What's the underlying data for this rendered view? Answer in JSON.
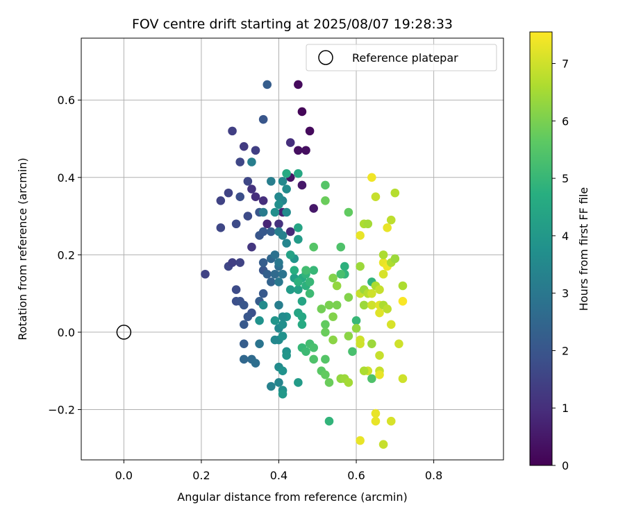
{
  "chart_data": {
    "type": "scatter",
    "title": "FOV centre drift starting at 2025/08/07 19:28:33",
    "xlabel": "Angular distance from reference (arcmin)",
    "ylabel": "Rotation from reference (arcmin)",
    "xlim": [
      -0.11,
      0.98
    ],
    "ylim": [
      -0.33,
      0.76
    ],
    "xticks": [
      0.0,
      0.2,
      0.4,
      0.6,
      0.8
    ],
    "xtick_labels": [
      "0.0",
      "0.2",
      "0.4",
      "0.6",
      "0.8"
    ],
    "yticks": [
      -0.2,
      0.0,
      0.2,
      0.4,
      0.6
    ],
    "ytick_labels": [
      "−0.2",
      "0.0",
      "0.2",
      "0.4",
      "0.6"
    ],
    "grid": true,
    "legend": {
      "placement": "top-right",
      "entries": [
        "Reference platepar"
      ]
    },
    "reference_point": {
      "x": 0.0,
      "y": 0.0,
      "marker": "open-circle"
    },
    "colorbar": {
      "label": "Hours from first FF file",
      "range": [
        0,
        7.55
      ],
      "ticks": [
        0,
        1,
        2,
        3,
        4,
        5,
        6,
        7
      ],
      "tick_labels": [
        "0",
        "1",
        "2",
        "3",
        "4",
        "5",
        "6",
        "7"
      ],
      "colormap": "viridis"
    },
    "points": [
      [
        0.45,
        0.64,
        0.2
      ],
      [
        0.46,
        0.57,
        0.1
      ],
      [
        0.48,
        0.52,
        0.2
      ],
      [
        0.47,
        0.47,
        0.3
      ],
      [
        0.45,
        0.47,
        0.3
      ],
      [
        0.43,
        0.4,
        0.4
      ],
      [
        0.49,
        0.32,
        0.5
      ],
      [
        0.46,
        0.38,
        0.5
      ],
      [
        0.41,
        0.31,
        0.7
      ],
      [
        0.37,
        0.28,
        0.8
      ],
      [
        0.43,
        0.26,
        0.9
      ],
      [
        0.34,
        0.35,
        1.0
      ],
      [
        0.36,
        0.34,
        1.0
      ],
      [
        0.33,
        0.37,
        1.1
      ],
      [
        0.43,
        0.49,
        1.0
      ],
      [
        0.4,
        0.28,
        1.1
      ],
      [
        0.33,
        0.22,
        1.2
      ],
      [
        0.31,
        0.48,
        1.3
      ],
      [
        0.34,
        0.47,
        1.4
      ],
      [
        0.28,
        0.52,
        1.4
      ],
      [
        0.25,
        0.34,
        1.5
      ],
      [
        0.27,
        0.36,
        1.5
      ],
      [
        0.3,
        0.44,
        1.6
      ],
      [
        0.32,
        0.39,
        1.6
      ],
      [
        0.21,
        0.15,
        1.5
      ],
      [
        0.27,
        0.17,
        1.6
      ],
      [
        0.28,
        0.18,
        1.4
      ],
      [
        0.3,
        0.18,
        1.5
      ],
      [
        0.25,
        0.27,
        1.6
      ],
      [
        0.29,
        0.28,
        1.7
      ],
      [
        0.3,
        0.35,
        1.8
      ],
      [
        0.32,
        0.3,
        1.7
      ],
      [
        0.36,
        0.55,
        2.0
      ],
      [
        0.37,
        0.64,
        2.2
      ],
      [
        0.35,
        0.31,
        2.0
      ],
      [
        0.35,
        0.25,
        2.0
      ],
      [
        0.36,
        0.26,
        2.1
      ],
      [
        0.38,
        0.26,
        2.2
      ],
      [
        0.29,
        0.11,
        1.7
      ],
      [
        0.29,
        0.08,
        1.8
      ],
      [
        0.3,
        0.08,
        1.9
      ],
      [
        0.31,
        0.07,
        2.0
      ],
      [
        0.33,
        0.05,
        1.9
      ],
      [
        0.32,
        0.04,
        2.0
      ],
      [
        0.31,
        0.02,
        2.1
      ],
      [
        0.35,
        0.08,
        2.2
      ],
      [
        0.36,
        0.1,
        2.1
      ],
      [
        0.36,
        0.16,
        2.0
      ],
      [
        0.36,
        0.18,
        2.2
      ],
      [
        0.37,
        0.15,
        2.3
      ],
      [
        0.38,
        0.13,
        2.4
      ],
      [
        0.38,
        0.19,
        2.5
      ],
      [
        0.39,
        0.15,
        2.6
      ],
      [
        0.4,
        0.17,
        2.7
      ],
      [
        0.41,
        0.15,
        2.9
      ],
      [
        0.4,
        0.13,
        3.0
      ],
      [
        0.39,
        0.2,
        2.8
      ],
      [
        0.4,
        0.18,
        3.0
      ],
      [
        0.4,
        0.26,
        3.2
      ],
      [
        0.41,
        0.25,
        3.3
      ],
      [
        0.42,
        0.23,
        3.4
      ],
      [
        0.41,
        0.34,
        3.4
      ],
      [
        0.4,
        0.35,
        3.5
      ],
      [
        0.41,
        0.39,
        3.5
      ],
      [
        0.42,
        0.37,
        3.6
      ],
      [
        0.42,
        0.31,
        3.6
      ],
      [
        0.39,
        0.31,
        3.7
      ],
      [
        0.4,
        0.33,
        3.7
      ],
      [
        0.38,
        0.39,
        3.2
      ],
      [
        0.36,
        0.31,
        3.1
      ],
      [
        0.33,
        0.44,
        3.2
      ],
      [
        0.31,
        -0.03,
        2.2
      ],
      [
        0.31,
        -0.07,
        2.5
      ],
      [
        0.33,
        -0.07,
        2.6
      ],
      [
        0.34,
        -0.08,
        2.7
      ],
      [
        0.35,
        -0.03,
        2.9
      ],
      [
        0.38,
        -0.14,
        3.3
      ],
      [
        0.4,
        -0.13,
        3.4
      ],
      [
        0.4,
        -0.09,
        3.6
      ],
      [
        0.41,
        -0.15,
        3.7
      ],
      [
        0.41,
        -0.1,
        3.8
      ],
      [
        0.42,
        -0.05,
        3.8
      ],
      [
        0.42,
        -0.06,
        3.9
      ],
      [
        0.4,
        -0.02,
        3.6
      ],
      [
        0.39,
        -0.02,
        3.5
      ],
      [
        0.41,
        -0.01,
        3.8
      ],
      [
        0.4,
        0.01,
        3.5
      ],
      [
        0.41,
        0.02,
        3.7
      ],
      [
        0.42,
        0.04,
        3.8
      ],
      [
        0.41,
        0.04,
        3.6
      ],
      [
        0.39,
        0.03,
        3.9
      ],
      [
        0.4,
        0.07,
        3.2
      ],
      [
        0.36,
        0.07,
        3.6
      ],
      [
        0.35,
        0.03,
        3.8
      ],
      [
        0.41,
        -0.16,
        4.0
      ],
      [
        0.45,
        -0.13,
        4.1
      ],
      [
        0.43,
        0.11,
        4.1
      ],
      [
        0.44,
        0.14,
        4.2
      ],
      [
        0.45,
        0.11,
        4.3
      ],
      [
        0.46,
        0.08,
        4.4
      ],
      [
        0.45,
        0.05,
        4.4
      ],
      [
        0.46,
        0.04,
        4.5
      ],
      [
        0.46,
        0.02,
        4.6
      ],
      [
        0.46,
        0.14,
        4.6
      ],
      [
        0.44,
        0.16,
        4.7
      ],
      [
        0.45,
        0.13,
        4.8
      ],
      [
        0.47,
        0.12,
        4.8
      ],
      [
        0.47,
        0.15,
        4.9
      ],
      [
        0.48,
        0.13,
        5.0
      ],
      [
        0.49,
        0.16,
        5.0
      ],
      [
        0.48,
        0.1,
        5.1
      ],
      [
        0.47,
        0.16,
        5.2
      ],
      [
        0.44,
        0.19,
        3.9
      ],
      [
        0.45,
        0.24,
        4.1
      ],
      [
        0.43,
        0.2,
        4.3
      ],
      [
        0.45,
        0.27,
        4.4
      ],
      [
        0.42,
        0.41,
        4.6
      ],
      [
        0.45,
        0.41,
        4.5
      ],
      [
        0.46,
        -0.04,
        5.0
      ],
      [
        0.47,
        -0.05,
        5.1
      ],
      [
        0.48,
        -0.03,
        5.2
      ],
      [
        0.49,
        -0.04,
        5.3
      ],
      [
        0.49,
        -0.07,
        5.4
      ],
      [
        0.52,
        -0.07,
        5.5
      ],
      [
        0.51,
        -0.1,
        5.6
      ],
      [
        0.52,
        -0.11,
        5.7
      ],
      [
        0.53,
        -0.13,
        5.8
      ],
      [
        0.52,
        0.02,
        5.7
      ],
      [
        0.52,
        0.0,
        5.8
      ],
      [
        0.51,
        0.06,
        5.9
      ],
      [
        0.53,
        0.07,
        6.0
      ],
      [
        0.54,
        0.04,
        6.1
      ],
      [
        0.55,
        0.07,
        6.0
      ],
      [
        0.54,
        -0.02,
        6.2
      ],
      [
        0.56,
        -0.12,
        6.3
      ],
      [
        0.57,
        -0.12,
        6.4
      ],
      [
        0.58,
        -0.13,
        6.5
      ],
      [
        0.49,
        0.22,
        5.5
      ],
      [
        0.52,
        0.34,
        5.8
      ],
      [
        0.52,
        0.38,
        5.5
      ],
      [
        0.58,
        0.31,
        5.7
      ],
      [
        0.56,
        0.22,
        5.4
      ],
      [
        0.57,
        0.17,
        4.8
      ],
      [
        0.57,
        0.15,
        4.9
      ],
      [
        0.56,
        0.15,
        5.3
      ],
      [
        0.55,
        0.12,
        6.3
      ],
      [
        0.54,
        0.14,
        6.1
      ],
      [
        0.58,
        0.09,
        6.1
      ],
      [
        0.53,
        -0.23,
        4.9
      ],
      [
        0.59,
        -0.05,
        5.3
      ],
      [
        0.6,
        0.03,
        5.0
      ],
      [
        0.58,
        -0.01,
        6.2
      ],
      [
        0.6,
        0.01,
        6.3
      ],
      [
        0.61,
        -0.02,
        7.0
      ],
      [
        0.61,
        -0.03,
        7.0
      ],
      [
        0.61,
        0.1,
        6.9
      ],
      [
        0.62,
        0.11,
        6.4
      ],
      [
        0.62,
        0.07,
        6.4
      ],
      [
        0.64,
        0.13,
        4.9
      ],
      [
        0.63,
        0.1,
        6.7
      ],
      [
        0.64,
        0.1,
        7.0
      ],
      [
        0.65,
        0.12,
        6.6
      ],
      [
        0.66,
        0.11,
        6.9
      ],
      [
        0.64,
        0.07,
        7.0
      ],
      [
        0.66,
        0.07,
        7.2
      ],
      [
        0.67,
        0.07,
        6.6
      ],
      [
        0.66,
        0.05,
        7.2
      ],
      [
        0.68,
        0.06,
        6.8
      ],
      [
        0.67,
        0.15,
        7.1
      ],
      [
        0.67,
        0.18,
        7.3
      ],
      [
        0.68,
        0.17,
        7.4
      ],
      [
        0.69,
        0.18,
        6.6
      ],
      [
        0.7,
        0.19,
        6.4
      ],
      [
        0.67,
        0.2,
        6.6
      ],
      [
        0.62,
        0.28,
        6.6
      ],
      [
        0.63,
        0.28,
        6.5
      ],
      [
        0.61,
        0.25,
        7.3
      ],
      [
        0.61,
        0.17,
        6.4
      ],
      [
        0.65,
        0.35,
        6.9
      ],
      [
        0.64,
        0.4,
        7.4
      ],
      [
        0.68,
        0.27,
        7.3
      ],
      [
        0.69,
        0.29,
        6.8
      ],
      [
        0.7,
        0.36,
        6.7
      ],
      [
        0.72,
        0.12,
        6.6
      ],
      [
        0.72,
        0.08,
        7.5
      ],
      [
        0.69,
        0.02,
        7.1
      ],
      [
        0.71,
        -0.03,
        7.0
      ],
      [
        0.72,
        -0.12,
        7.0
      ],
      [
        0.63,
        -0.1,
        7.0
      ],
      [
        0.62,
        -0.1,
        6.6
      ],
      [
        0.64,
        -0.12,
        5.4
      ],
      [
        0.64,
        -0.03,
        6.4
      ],
      [
        0.66,
        -0.06,
        6.9
      ],
      [
        0.66,
        -0.1,
        6.9
      ],
      [
        0.66,
        -0.11,
        7.3
      ],
      [
        0.65,
        -0.21,
        7.3
      ],
      [
        0.65,
        -0.23,
        7.3
      ],
      [
        0.69,
        -0.23,
        7.1
      ],
      [
        0.61,
        -0.28,
        7.3
      ],
      [
        0.67,
        -0.29,
        6.9
      ]
    ]
  }
}
